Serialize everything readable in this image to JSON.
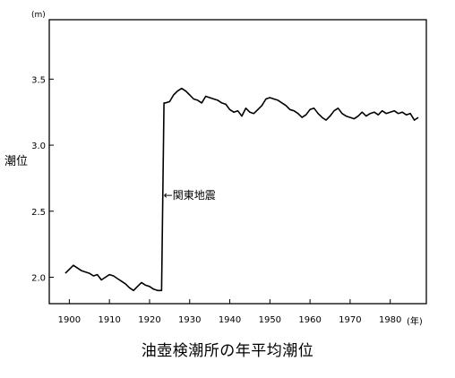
{
  "chart_data": {
    "type": "line",
    "title": "油壺検潮所の年平均潮位",
    "ylabel": "潮位",
    "y_unit": "(m)",
    "x_unit": "(年)",
    "xlim": [
      1895,
      1989
    ],
    "ylim": [
      1.8,
      3.95
    ],
    "x_ticks": [
      1900,
      1910,
      1920,
      1930,
      1940,
      1950,
      1960,
      1970,
      1980
    ],
    "x_tick_labels": [
      "1900",
      "1910",
      "1920",
      "1930",
      "1940",
      "1950",
      "1960",
      "1970",
      "1980"
    ],
    "y_ticks": [
      2.0,
      2.5,
      3.0,
      3.5
    ],
    "y_tick_labels": [
      "2.0",
      "2.5",
      "3.0",
      "3.5"
    ],
    "grid": false,
    "legend": "none",
    "annotations": [
      {
        "text": "←関東地震",
        "x": 1923.5,
        "y": 2.62
      }
    ],
    "series": [
      {
        "x": [
          1899,
          1900,
          1901,
          1902,
          1903,
          1904,
          1905,
          1906,
          1907,
          1908,
          1909,
          1910,
          1911,
          1912,
          1913,
          1914,
          1915,
          1916,
          1917,
          1918,
          1919,
          1920,
          1921,
          1922,
          1923,
          1923.6,
          1924,
          1925,
          1926,
          1927,
          1928,
          1929,
          1930,
          1931,
          1932,
          1933,
          1934,
          1935,
          1936,
          1937,
          1938,
          1939,
          1940,
          1941,
          1942,
          1943,
          1944,
          1945,
          1946,
          1947,
          1948,
          1949,
          1950,
          1951,
          1952,
          1953,
          1954,
          1955,
          1956,
          1957,
          1958,
          1959,
          1960,
          1961,
          1962,
          1963,
          1964,
          1965,
          1966,
          1967,
          1968,
          1969,
          1970,
          1971,
          1972,
          1973,
          1974,
          1975,
          1976,
          1977,
          1978,
          1979,
          1980,
          1981,
          1982,
          1983,
          1984,
          1985,
          1986,
          1987
        ],
        "y": [
          2.03,
          2.06,
          2.09,
          2.07,
          2.05,
          2.04,
          2.03,
          2.01,
          2.02,
          1.98,
          2.0,
          2.02,
          2.01,
          1.99,
          1.97,
          1.95,
          1.92,
          1.9,
          1.93,
          1.96,
          1.94,
          1.93,
          1.91,
          1.9,
          1.9,
          3.32,
          3.32,
          3.33,
          3.38,
          3.41,
          3.43,
          3.41,
          3.38,
          3.35,
          3.34,
          3.32,
          3.37,
          3.36,
          3.35,
          3.34,
          3.32,
          3.31,
          3.27,
          3.25,
          3.26,
          3.22,
          3.28,
          3.25,
          3.24,
          3.27,
          3.3,
          3.35,
          3.36,
          3.35,
          3.34,
          3.32,
          3.3,
          3.27,
          3.26,
          3.24,
          3.21,
          3.23,
          3.27,
          3.28,
          3.24,
          3.21,
          3.19,
          3.22,
          3.26,
          3.28,
          3.24,
          3.22,
          3.21,
          3.2,
          3.22,
          3.25,
          3.22,
          3.24,
          3.25,
          3.23,
          3.26,
          3.24,
          3.25,
          3.26,
          3.24,
          3.25,
          3.23,
          3.24,
          3.19,
          3.21
        ]
      }
    ]
  }
}
